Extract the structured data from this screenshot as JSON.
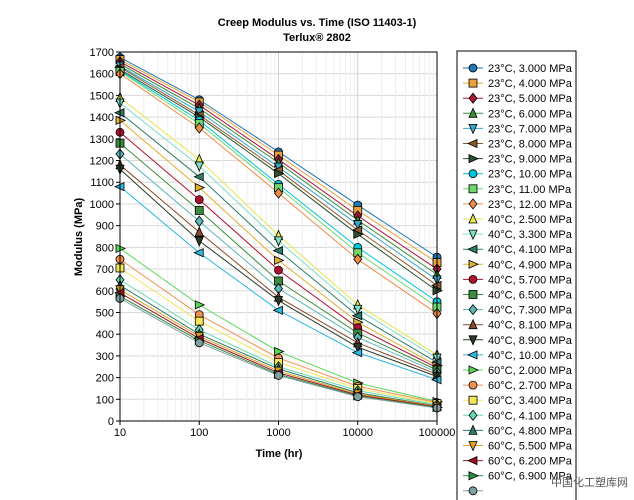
{
  "chart_data": {
    "type": "line",
    "title": "Creep Modulus vs. Time (ISO 11403-1)",
    "subtitle": "Terlux® 2802",
    "xlabel": "Time (hr)",
    "ylabel": "Modulus (MPa)",
    "x_scale": "log",
    "xlim": [
      10,
      100000
    ],
    "ylim": [
      0,
      1700
    ],
    "x": [
      10,
      100,
      1000,
      10000,
      100000
    ],
    "x_tick_labels": [
      "10",
      "100",
      "1000",
      "10000",
      "100000"
    ],
    "y_ticks": [
      0,
      100,
      200,
      300,
      400,
      500,
      600,
      700,
      800,
      900,
      1000,
      1100,
      1200,
      1300,
      1400,
      1500,
      1600,
      1700
    ],
    "grid": true,
    "legend_position": "right",
    "series": [
      {
        "name": "23°C, 3.000 MPa",
        "color": "#1f77b4",
        "marker": "circle",
        "values": [
          1675,
          1480,
          1240,
          995,
          755
        ]
      },
      {
        "name": "23°C, 4.000 MPa",
        "color": "#e8a33c",
        "marker": "square",
        "values": [
          1665,
          1470,
          1225,
          970,
          730
        ]
      },
      {
        "name": "23°C, 5.000 MPa",
        "color": "#a8173a",
        "marker": "diamond",
        "values": [
          1655,
          1455,
          1205,
          945,
          700
        ]
      },
      {
        "name": "23°C, 6.000 MPa",
        "color": "#3b8f3b",
        "marker": "triangle-up",
        "values": [
          1645,
          1440,
          1190,
          925,
          675
        ]
      },
      {
        "name": "23°C, 7.000 MPa",
        "color": "#3aa6c8",
        "marker": "triangle-down",
        "values": [
          1635,
          1425,
          1170,
          905,
          650
        ]
      },
      {
        "name": "23°C, 8.000 MPa",
        "color": "#8b5a2b",
        "marker": "triangle-left",
        "values": [
          1630,
          1410,
          1155,
          880,
          625
        ]
      },
      {
        "name": "23°C, 9.000 MPa",
        "color": "#2f4f2f",
        "marker": "triangle-right",
        "values": [
          1620,
          1400,
          1140,
          860,
          600
        ]
      },
      {
        "name": "23°C, 10.00 MPa",
        "color": "#00c5d8",
        "marker": "circle",
        "values": [
          1615,
          1385,
          1090,
          800,
          550
        ]
      },
      {
        "name": "23°C, 11.00 MPa",
        "color": "#6fd96f",
        "marker": "square",
        "values": [
          1610,
          1370,
          1075,
          775,
          525
        ]
      },
      {
        "name": "23°C, 12.00 MPa",
        "color": "#f08c4a",
        "marker": "diamond",
        "values": [
          1600,
          1350,
          1050,
          745,
          495
        ]
      },
      {
        "name": "40°C, 2.500 MPa",
        "color": "#e6e64a",
        "marker": "triangle-up",
        "values": [
          1490,
          1205,
          855,
          535,
          305
        ]
      },
      {
        "name": "40°C, 3.300 MPa",
        "color": "#7fe0c8",
        "marker": "triangle-down",
        "values": [
          1465,
          1175,
          830,
          515,
          290
        ]
      },
      {
        "name": "40°C, 4.100 MPa",
        "color": "#2e7d6b",
        "marker": "triangle-left",
        "values": [
          1420,
          1125,
          785,
          485,
          270
        ]
      },
      {
        "name": "40°C, 4.900 MPa",
        "color": "#e0b030",
        "marker": "triangle-right",
        "values": [
          1385,
          1075,
          740,
          455,
          255
        ]
      },
      {
        "name": "40°C, 5.700 MPa",
        "color": "#b01030",
        "marker": "circle",
        "values": [
          1330,
          1020,
          695,
          430,
          245
        ]
      },
      {
        "name": "40°C, 6.500 MPa",
        "color": "#3c8c3c",
        "marker": "square",
        "values": [
          1280,
          970,
          645,
          405,
          235
        ]
      },
      {
        "name": "40°C, 7.300 MPa",
        "color": "#5fb8b8",
        "marker": "diamond",
        "values": [
          1230,
          920,
          610,
          385,
          225
        ]
      },
      {
        "name": "40°C, 8.100 MPa",
        "color": "#8b4a2b",
        "marker": "triangle-up",
        "values": [
          1180,
          870,
          570,
          360,
          215
        ]
      },
      {
        "name": "40°C, 8.900 MPa",
        "color": "#2b3b2b",
        "marker": "triangle-down",
        "values": [
          1160,
          830,
          555,
          340,
          205
        ]
      },
      {
        "name": "40°C, 10.00 MPa",
        "color": "#30b8e0",
        "marker": "triangle-left",
        "values": [
          1080,
          775,
          510,
          315,
          190
        ]
      },
      {
        "name": "60°C, 2.000 MPa",
        "color": "#58d858",
        "marker": "triangle-right",
        "values": [
          795,
          535,
          320,
          175,
          90
        ]
      },
      {
        "name": "60°C, 2.700 MPa",
        "color": "#f09050",
        "marker": "circle",
        "values": [
          745,
          490,
          290,
          160,
          85
        ]
      },
      {
        "name": "60°C, 3.400 MPa",
        "color": "#f5e55a",
        "marker": "square",
        "values": [
          705,
          460,
          270,
          150,
          80
        ]
      },
      {
        "name": "60°C, 4.100 MPa",
        "color": "#68d8b0",
        "marker": "diamond",
        "values": [
          650,
          420,
          250,
          140,
          75
        ]
      },
      {
        "name": "60°C, 4.800 MPa",
        "color": "#2a7a6a",
        "marker": "triangle-up",
        "values": [
          625,
          400,
          240,
          130,
          70
        ]
      },
      {
        "name": "60°C, 5.500 MPa",
        "color": "#e0a020",
        "marker": "triangle-down",
        "values": [
          605,
          390,
          230,
          125,
          68
        ]
      },
      {
        "name": "60°C, 6.200 MPa",
        "color": "#a01020",
        "marker": "triangle-left",
        "values": [
          590,
          380,
          222,
          120,
          65
        ]
      },
      {
        "name": "60°C, 6.900 MPa",
        "color": "#2f8f3f",
        "marker": "triangle-right",
        "values": [
          575,
          370,
          215,
          115,
          62
        ]
      },
      {
        "name": "",
        "color": "#7fa0a0",
        "marker": "circle",
        "values": [
          565,
          360,
          210,
          112,
          60
        ]
      }
    ]
  },
  "watermark": "中国化工塑库网"
}
